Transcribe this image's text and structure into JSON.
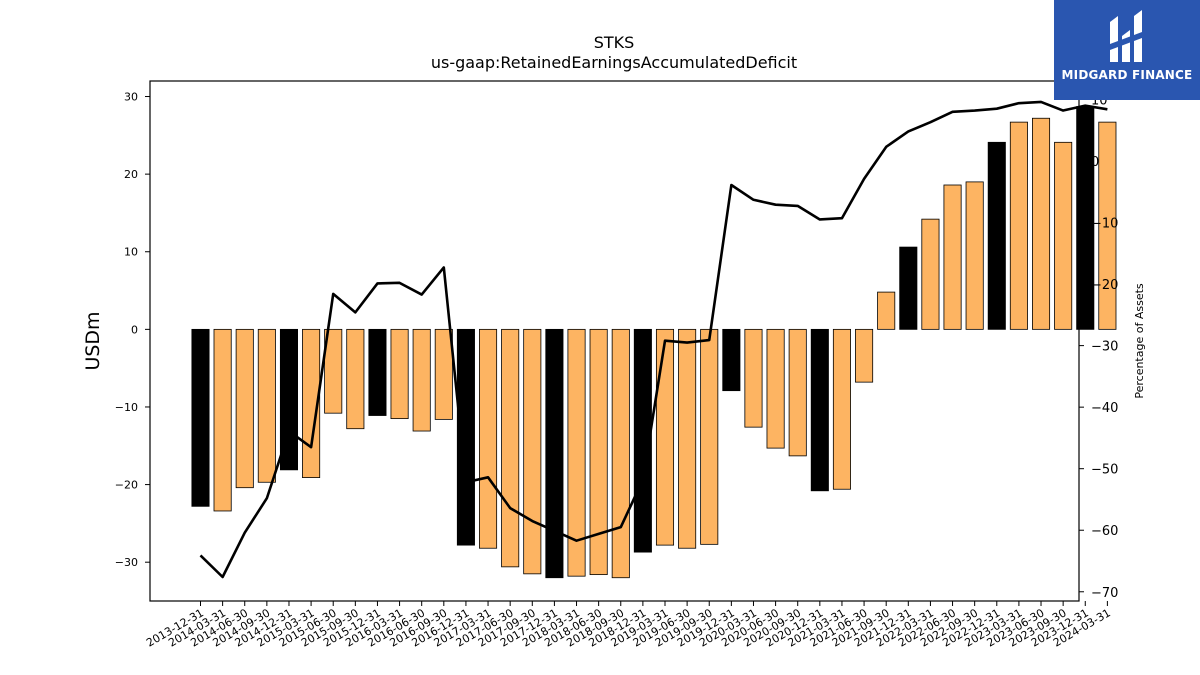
{
  "chart_data": {
    "type": "bar",
    "title": "STKS",
    "subtitle": "us-gaap:RetainedEarningsAccumulatedDeficit",
    "ylabel": "USDm",
    "y2label": "Percentage of Assets",
    "ylim": [
      -35,
      32
    ],
    "y2lim": [
      -71.5,
      13
    ],
    "yticks": [
      -30,
      -20,
      -10,
      0,
      10,
      20,
      30
    ],
    "y2ticks": [
      -70,
      -60,
      -50,
      -40,
      -30,
      -20,
      -10,
      0,
      10
    ],
    "categories": [
      "2013-12-31",
      "2014-03-31",
      "2014-06-30",
      "2014-09-30",
      "2014-12-31",
      "2015-03-31",
      "2015-06-30",
      "2015-09-30",
      "2015-12-31",
      "2016-03-31",
      "2016-06-30",
      "2016-09-30",
      "2016-12-31",
      "2017-03-31",
      "2017-06-30",
      "2017-09-30",
      "2017-12-31",
      "2018-03-31",
      "2018-06-30",
      "2018-09-30",
      "2018-12-31",
      "2019-03-31",
      "2019-06-30",
      "2019-09-30",
      "2019-12-31",
      "2020-03-31",
      "2020-06-30",
      "2020-09-30",
      "2020-12-31",
      "2021-03-31",
      "2021-06-30",
      "2021-09-30",
      "2021-12-31",
      "2022-03-31",
      "2022-06-30",
      "2022-09-30",
      "2022-12-31",
      "2023-03-31",
      "2023-06-30",
      "2023-09-30",
      "2023-12-31",
      "2024-03-31"
    ],
    "series": [
      {
        "type": "bar",
        "values": [
          -22.8,
          -23.4,
          -20.4,
          -19.7,
          -18.1,
          -19.1,
          -10.8,
          -12.8,
          -11.1,
          -11.5,
          -13.1,
          -11.6,
          -27.8,
          -28.2,
          -30.6,
          -31.5,
          -32.0,
          -31.8,
          -31.6,
          -32.0,
          -28.7,
          -27.8,
          -28.2,
          -27.7,
          -7.9,
          -12.6,
          -15.3,
          -16.3,
          -20.8,
          -20.6,
          -6.8,
          4.8,
          10.6,
          14.2,
          18.6,
          19.0,
          24.1,
          26.7,
          27.2,
          24.1,
          28.7,
          26.7
        ],
        "highlight": [
          true,
          false,
          false,
          false,
          true,
          false,
          false,
          false,
          true,
          false,
          false,
          false,
          true,
          false,
          false,
          false,
          true,
          false,
          false,
          false,
          true,
          false,
          false,
          false,
          true,
          false,
          false,
          false,
          true,
          false,
          false,
          false,
          true,
          false,
          false,
          false,
          true,
          false,
          false,
          false,
          true,
          false
        ]
      },
      {
        "type": "line",
        "axis": "right",
        "values": [
          -64.1,
          -67.6,
          -60.4,
          -54.8,
          -43.9,
          -46.5,
          -21.6,
          -24.6,
          -19.9,
          -19.8,
          -21.7,
          -17.3,
          -52.2,
          -51.4,
          -56.4,
          -58.5,
          -60.1,
          -61.7,
          -60.6,
          -59.5,
          -51.8,
          -29.2,
          -29.5,
          -29.1,
          -3.9,
          -6.3,
          -7.1,
          -7.3,
          -9.5,
          -9.3,
          -2.9,
          2.3,
          4.8,
          6.3,
          8.0,
          8.2,
          8.5,
          9.4,
          9.6,
          8.2,
          9.0,
          8.4
        ]
      }
    ],
    "colors": {
      "bar": "#fdb462",
      "bar_highlight": "#000000",
      "bar_edge": "#000000",
      "line": "#000000"
    },
    "grid": false,
    "legend": "none"
  },
  "logo": {
    "text": "MIDGARD FINANCE",
    "background": "#2a56b0"
  }
}
